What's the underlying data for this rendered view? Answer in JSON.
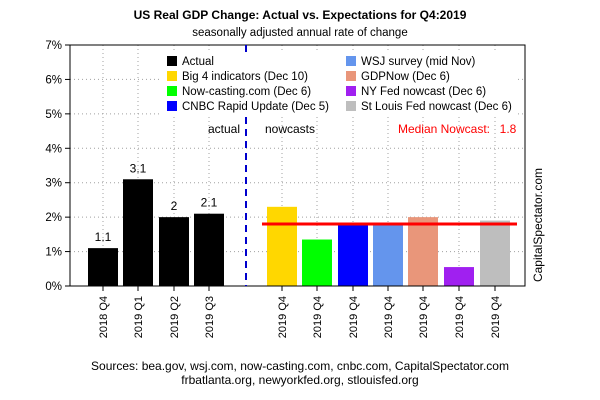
{
  "chart_data": {
    "type": "bar",
    "title": "US Real GDP Change: Actual vs. Expectations for Q4:2019",
    "subtitle": "seasonally adjusted annual rate of change",
    "ylim": [
      0,
      7
    ],
    "ytick_labels": [
      "0%",
      "1%",
      "2%",
      "3%",
      "4%",
      "5%",
      "6%",
      "7%"
    ],
    "grid": "on",
    "legend_position": "top",
    "series": [
      {
        "name": "Actual",
        "color": "#000000"
      },
      {
        "name": "Big 4 indicators (Dec 10)",
        "color": "#FFD700"
      },
      {
        "name": "Now-casting.com (Dec 6)",
        "color": "#00FF00"
      },
      {
        "name": "CNBC Rapid Update (Dec 5)",
        "color": "#0000FF"
      },
      {
        "name": "WSJ survey (mid Nov)",
        "color": "#6495ED"
      },
      {
        "name": "GDPNow (Dec 6)",
        "color": "#E9967A"
      },
      {
        "name": "NY Fed nowcast (Dec 6)",
        "color": "#A020F0"
      },
      {
        "name": "St Louis Fed nowcast (Dec 6)",
        "color": "#BEBEBE"
      }
    ],
    "actual": {
      "categories": [
        "2018 Q4",
        "2019 Q1",
        "2019 Q2",
        "2019 Q3"
      ],
      "values": [
        1.1,
        3.1,
        2.0,
        2.1
      ],
      "value_labels": [
        "1.1",
        "3.1",
        "2",
        "2.1"
      ],
      "color": "#000000"
    },
    "nowcasts": {
      "categories": [
        "2019 Q4",
        "2019 Q4",
        "2019 Q4",
        "2019 Q4",
        "2019 Q4",
        "2019 Q4",
        "2019 Q4"
      ],
      "values": [
        2.3,
        1.35,
        1.8,
        1.8,
        2.0,
        0.55,
        1.9
      ],
      "colors": [
        "#FFD700",
        "#00FF00",
        "#0000FF",
        "#6495ED",
        "#E9967A",
        "#A020F0",
        "#BEBEBE"
      ]
    },
    "section_labels": {
      "actual": "actual",
      "nowcasts": "nowcasts"
    },
    "median": {
      "label": "Median Nowcast:",
      "value": 1.8,
      "value_label": "1.8",
      "color": "#FF0000"
    },
    "divider_color": "#0000CC"
  },
  "sources": {
    "line1": "Sources: bea.gov, wsj.com, now-casting.com, cnbc.com, CapitalSpectator.com",
    "line2": "frbatlanta.org, newyorkfed.org, stlouisfed.org"
  },
  "watermark": "CapitalSpectator.com"
}
